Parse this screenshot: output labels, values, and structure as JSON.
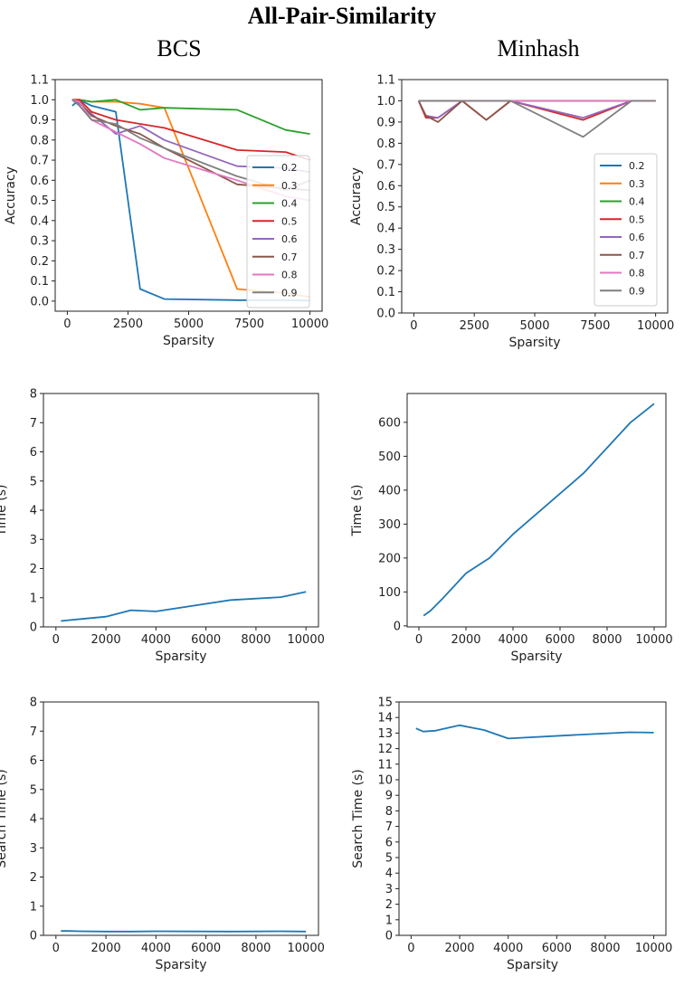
{
  "figure": {
    "title": "All-Pair-Similarity",
    "column_titles": [
      "BCS",
      "Minhash"
    ]
  },
  "chart_data": [
    {
      "id": "bcs-accuracy",
      "type": "line",
      "xlabel": "Sparsity",
      "ylabel": "Accuracy",
      "xlim": [
        -500,
        10500
      ],
      "ylim": [
        -0.05,
        1.1
      ],
      "xticks": [
        0,
        2500,
        5000,
        7500,
        10000
      ],
      "xtick_labels": [
        "0",
        "2500",
        "5000",
        "7500",
        "10000"
      ],
      "yticks": [
        0.0,
        0.1,
        0.2,
        0.3,
        0.4,
        0.5,
        0.6,
        0.7,
        0.8,
        0.9,
        1.0,
        1.1
      ],
      "ytick_labels": [
        "0.0",
        "0.1",
        "0.2",
        "0.3",
        "0.4",
        "0.5",
        "0.6",
        "0.7",
        "0.8",
        "0.9",
        "1.0",
        "1.1"
      ],
      "legend": "right",
      "x": [
        200,
        500,
        1000,
        2000,
        3000,
        4000,
        7000,
        9000,
        10000
      ],
      "series": [
        {
          "name": "0.2",
          "color": "#1f77b4",
          "values": [
            0.97,
            1.0,
            0.97,
            0.94,
            0.06,
            0.01,
            0.005,
            0.005,
            0.003
          ]
        },
        {
          "name": "0.3",
          "color": "#ff7f0e",
          "values": [
            1.0,
            1.0,
            0.99,
            0.99,
            0.98,
            0.96,
            0.06,
            0.04,
            0.02
          ]
        },
        {
          "name": "0.4",
          "color": "#2ca02c",
          "values": [
            1.0,
            1.0,
            0.99,
            1.0,
            0.95,
            0.96,
            0.95,
            0.85,
            0.83
          ]
        },
        {
          "name": "0.5",
          "color": "#d62728",
          "values": [
            1.0,
            1.0,
            0.94,
            0.9,
            0.88,
            0.86,
            0.75,
            0.74,
            0.7
          ]
        },
        {
          "name": "0.6",
          "color": "#9467bd",
          "values": [
            1.0,
            0.98,
            0.93,
            0.83,
            0.87,
            0.8,
            0.67,
            0.66,
            0.64
          ]
        },
        {
          "name": "0.7",
          "color": "#8c564b",
          "values": [
            1.0,
            0.99,
            0.92,
            0.87,
            0.83,
            0.76,
            0.58,
            0.56,
            0.55
          ]
        },
        {
          "name": "0.8",
          "color": "#e377c2",
          "values": [
            1.0,
            0.99,
            0.9,
            0.84,
            0.78,
            0.71,
            0.6,
            0.52,
            0.5
          ]
        },
        {
          "name": "0.9",
          "color": "#7f7f7f",
          "values": [
            1.0,
            0.97,
            0.9,
            0.88,
            0.81,
            0.76,
            0.62,
            0.55,
            0.6
          ]
        }
      ]
    },
    {
      "id": "minhash-accuracy",
      "type": "line",
      "xlabel": "Sparsity",
      "ylabel": "Accuracy",
      "xlim": [
        -500,
        10500
      ],
      "ylim": [
        0.0,
        1.1
      ],
      "xticks": [
        0,
        2500,
        5000,
        7500,
        10000
      ],
      "xtick_labels": [
        "0",
        "2500",
        "5000",
        "7500",
        "10000"
      ],
      "yticks": [
        0.0,
        0.1,
        0.2,
        0.3,
        0.4,
        0.5,
        0.6,
        0.7,
        0.8,
        0.9,
        1.0,
        1.1
      ],
      "ytick_labels": [
        "0.0",
        "0.1",
        "0.2",
        "0.3",
        "0.4",
        "0.5",
        "0.6",
        "0.7",
        "0.8",
        "0.9",
        "1.0",
        "1.1"
      ],
      "legend": "right",
      "x": [
        200,
        500,
        1000,
        2000,
        3000,
        4000,
        7000,
        9000,
        10000
      ],
      "series": [
        {
          "name": "0.2",
          "color": "#1f77b4",
          "values": [
            1.0,
            1.0,
            1.0,
            1.0,
            1.0,
            1.0,
            1.0,
            1.0,
            1.0
          ]
        },
        {
          "name": "0.3",
          "color": "#ff7f0e",
          "values": [
            1.0,
            1.0,
            1.0,
            1.0,
            1.0,
            1.0,
            1.0,
            1.0,
            1.0
          ]
        },
        {
          "name": "0.4",
          "color": "#2ca02c",
          "values": [
            1.0,
            1.0,
            1.0,
            1.0,
            1.0,
            1.0,
            1.0,
            1.0,
            1.0
          ]
        },
        {
          "name": "0.5",
          "color": "#d62728",
          "values": [
            1.0,
            0.92,
            0.92,
            1.0,
            0.91,
            1.0,
            0.91,
            1.0,
            1.0
          ]
        },
        {
          "name": "0.6",
          "color": "#9467bd",
          "values": [
            1.0,
            0.93,
            0.92,
            1.0,
            1.0,
            1.0,
            0.92,
            1.0,
            1.0
          ]
        },
        {
          "name": "0.7",
          "color": "#8c564b",
          "values": [
            1.0,
            0.93,
            0.9,
            1.0,
            0.91,
            1.0,
            1.0,
            1.0,
            1.0
          ]
        },
        {
          "name": "0.8",
          "color": "#e377c2",
          "values": [
            1.0,
            1.0,
            1.0,
            1.0,
            1.0,
            1.0,
            1.0,
            1.0,
            1.0
          ]
        },
        {
          "name": "0.9",
          "color": "#7f7f7f",
          "values": [
            1.0,
            1.0,
            1.0,
            1.0,
            1.0,
            1.0,
            0.83,
            1.0,
            1.0
          ]
        }
      ]
    },
    {
      "id": "bcs-time",
      "type": "line",
      "xlabel": "Sparsity",
      "ylabel": "Time (s)",
      "xlim": [
        -500,
        10500
      ],
      "ylim": [
        0,
        8
      ],
      "xticks": [
        0,
        2000,
        4000,
        6000,
        8000,
        10000
      ],
      "xtick_labels": [
        "0",
        "2000",
        "4000",
        "6000",
        "8000",
        "10000"
      ],
      "yticks": [
        0,
        1,
        2,
        3,
        4,
        5,
        6,
        7,
        8
      ],
      "ytick_labels": [
        "0",
        "1",
        "2",
        "3",
        "4",
        "5",
        "6",
        "7",
        "8"
      ],
      "x": [
        200,
        500,
        1000,
        2000,
        3000,
        4000,
        7000,
        9000,
        10000
      ],
      "series": [
        {
          "name": "time",
          "color": "#1f77b4",
          "values": [
            0.2,
            0.23,
            0.27,
            0.35,
            0.57,
            0.53,
            0.92,
            1.02,
            1.2
          ]
        }
      ]
    },
    {
      "id": "minhash-time",
      "type": "line",
      "xlabel": "Sparsity",
      "ylabel": "Time (s)",
      "xlim": [
        -500,
        10500
      ],
      "ylim": [
        -3,
        685
      ],
      "xticks": [
        0,
        2000,
        4000,
        6000,
        8000,
        10000
      ],
      "xtick_labels": [
        "0",
        "2000",
        "4000",
        "6000",
        "8000",
        "10000"
      ],
      "yticks": [
        0,
        100,
        200,
        300,
        400,
        500,
        600
      ],
      "ytick_labels": [
        "0",
        "100",
        "200",
        "300",
        "400",
        "500",
        "600"
      ],
      "x": [
        200,
        500,
        1000,
        2000,
        3000,
        4000,
        7000,
        9000,
        10000
      ],
      "series": [
        {
          "name": "time",
          "color": "#1f77b4",
          "values": [
            30,
            45,
            80,
            155,
            200,
            270,
            450,
            600,
            655
          ]
        }
      ]
    },
    {
      "id": "bcs-search-time",
      "type": "line",
      "xlabel": "Sparsity",
      "ylabel": "Search Time (s)",
      "xlim": [
        -500,
        10500
      ],
      "ylim": [
        0,
        8
      ],
      "xticks": [
        0,
        2000,
        4000,
        6000,
        8000,
        10000
      ],
      "xtick_labels": [
        "0",
        "2000",
        "4000",
        "6000",
        "8000",
        "10000"
      ],
      "yticks": [
        0,
        1,
        2,
        3,
        4,
        5,
        6,
        7,
        8
      ],
      "ytick_labels": [
        "0",
        "1",
        "2",
        "3",
        "4",
        "5",
        "6",
        "7",
        "8"
      ],
      "x": [
        200,
        500,
        1000,
        2000,
        3000,
        4000,
        7000,
        9000,
        10000
      ],
      "series": [
        {
          "name": "search time",
          "color": "#1f77b4",
          "values": [
            0.15,
            0.15,
            0.14,
            0.13,
            0.13,
            0.14,
            0.13,
            0.14,
            0.13
          ]
        }
      ]
    },
    {
      "id": "minhash-search-time",
      "type": "line",
      "xlabel": "Sparsity",
      "ylabel": "Search Time (s)",
      "xlim": [
        -500,
        10500
      ],
      "ylim": [
        0,
        15
      ],
      "xticks": [
        0,
        2000,
        4000,
        6000,
        8000,
        10000
      ],
      "xtick_labels": [
        "0",
        "2000",
        "4000",
        "6000",
        "8000",
        "10000"
      ],
      "yticks": [
        0,
        1,
        2,
        3,
        4,
        5,
        6,
        7,
        8,
        9,
        10,
        11,
        12,
        13,
        14,
        15
      ],
      "ytick_labels": [
        "0",
        "1",
        "2",
        "3",
        "4",
        "5",
        "6",
        "7",
        "8",
        "9",
        "10",
        "11",
        "12",
        "13",
        "14",
        "15"
      ],
      "x": [
        200,
        500,
        1000,
        2000,
        3000,
        4000,
        7000,
        9000,
        10000
      ],
      "series": [
        {
          "name": "search time",
          "color": "#1f77b4",
          "values": [
            13.3,
            13.1,
            13.15,
            13.5,
            13.2,
            12.65,
            12.9,
            13.05,
            13.03
          ]
        }
      ]
    }
  ]
}
